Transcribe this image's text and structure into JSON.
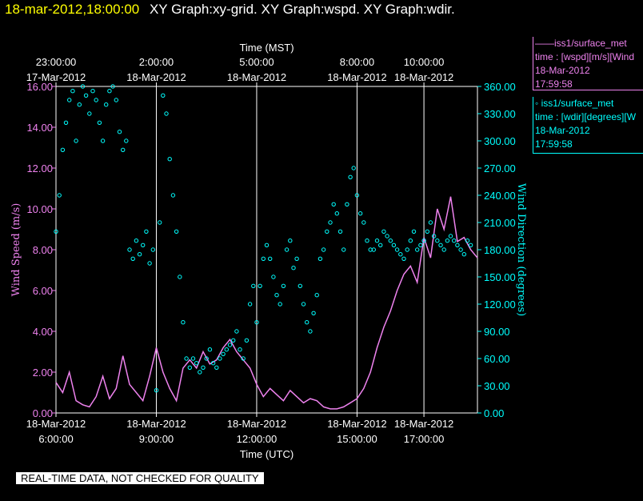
{
  "header": {
    "timestamp": "18-mar-2012,18:00:00",
    "title": "XY Graph:xy-grid.  XY Graph:wspd.  XY Graph:wdir."
  },
  "legend": {
    "wspd": {
      "line1": "iss1/surface_met",
      "line2": "time : [wspd][m/s][Wind",
      "line3": "18-Mar-2012",
      "line4": "17:59:58"
    },
    "wdir": {
      "line1": "iss1/surface_met",
      "line2": "time : [wdir][degrees][W",
      "line3": "18-Mar-2012",
      "line4": "17:59:58"
    }
  },
  "warning": "REAL-TIME DATA, NOT CHECKED FOR QUALITY",
  "colors": {
    "wspd": "#ee82ee",
    "wdir": "#00ffff",
    "header_timestamp": "#ffff00",
    "grid": "#ffffff"
  },
  "chart_data": {
    "type": "line",
    "x_top_label": "Time (MST)",
    "x_bottom_label": "Time (UTC)",
    "y_left_label": "Wind Speed (m/s)",
    "y_right_label": "Wind Direction (degrees)",
    "x_range_utc_hours": [
      6.0,
      18.6
    ],
    "y_left_range": [
      0,
      16
    ],
    "y_right_range": [
      0,
      360
    ],
    "y_left_ticks": [
      "0.00",
      "2.00",
      "4.00",
      "6.00",
      "8.00",
      "10.00",
      "12.00",
      "14.00",
      "16.00"
    ],
    "y_right_ticks": [
      "0.00",
      "30.00",
      "60.00",
      "90.00",
      "120.00",
      "150.00",
      "180.00",
      "210.00",
      "240.00",
      "270.00",
      "300.00",
      "330.00",
      "360.00"
    ],
    "bottom_ticks": [
      {
        "utc": 6.0,
        "date": "18-Mar-2012",
        "time": "6:00:00"
      },
      {
        "utc": 9.0,
        "date": "18-Mar-2012",
        "time": "9:00:00"
      },
      {
        "utc": 12.0,
        "date": "18-Mar-2012",
        "time": "12:00:00"
      },
      {
        "utc": 15.0,
        "date": "18-Mar-2012",
        "time": "15:00:00"
      },
      {
        "utc": 17.0,
        "date": "18-Mar-2012",
        "time": "17:00:00"
      }
    ],
    "top_ticks": [
      {
        "utc": 6.0,
        "date": "17-Mar-2012",
        "time": "23:00:00"
      },
      {
        "utc": 9.0,
        "date": "18-Mar-2012",
        "time": "2:00:00"
      },
      {
        "utc": 12.0,
        "date": "18-Mar-2012",
        "time": "5:00:00"
      },
      {
        "utc": 15.0,
        "date": "18-Mar-2012",
        "time": "8:00:00"
      },
      {
        "utc": 17.0,
        "date": "18-Mar-2012",
        "time": "10:00:00"
      }
    ],
    "grid": true,
    "series": [
      {
        "name": "iss1/surface_met time : [wspd][m/s][Wind",
        "style": "line",
        "x": [
          6.0,
          6.2,
          6.4,
          6.6,
          6.8,
          7.0,
          7.2,
          7.4,
          7.6,
          7.8,
          8.0,
          8.2,
          8.4,
          8.6,
          8.8,
          9.0,
          9.2,
          9.4,
          9.6,
          9.8,
          10.0,
          10.2,
          10.4,
          10.6,
          10.8,
          11.0,
          11.2,
          11.4,
          11.6,
          11.8,
          12.0,
          12.2,
          12.4,
          12.6,
          12.8,
          13.0,
          13.2,
          13.4,
          13.6,
          13.8,
          14.0,
          14.2,
          14.4,
          14.6,
          14.8,
          15.0,
          15.2,
          15.4,
          15.6,
          15.8,
          16.0,
          16.2,
          16.4,
          16.6,
          16.8,
          17.0,
          17.2,
          17.4,
          17.6,
          17.8,
          18.0,
          18.2,
          18.4,
          18.6
        ],
        "y": [
          1.5,
          1.0,
          2.0,
          0.6,
          0.4,
          0.3,
          0.8,
          1.8,
          0.7,
          1.2,
          2.8,
          1.4,
          1.0,
          0.6,
          1.8,
          3.2,
          2.0,
          1.2,
          0.6,
          2.2,
          2.6,
          2.2,
          3.0,
          2.4,
          2.6,
          3.2,
          3.6,
          3.0,
          2.6,
          2.2,
          1.4,
          0.8,
          1.2,
          0.9,
          0.6,
          1.1,
          0.8,
          0.5,
          0.7,
          0.6,
          0.3,
          0.2,
          0.2,
          0.3,
          0.5,
          0.7,
          1.2,
          2.0,
          3.2,
          4.2,
          5.0,
          6.0,
          6.8,
          7.2,
          6.4,
          8.6,
          7.6,
          10.0,
          9.0,
          10.6,
          8.4,
          8.6,
          8.0,
          7.6
        ]
      },
      {
        "name": "iss1/surface_met time : [wdir][degrees][W",
        "style": "markers",
        "x": [
          6.0,
          6.1,
          6.2,
          6.3,
          6.4,
          6.5,
          6.6,
          6.7,
          6.8,
          6.9,
          7.0,
          7.1,
          7.2,
          7.3,
          7.4,
          7.5,
          7.6,
          7.7,
          7.8,
          7.9,
          8.0,
          8.1,
          8.2,
          8.3,
          8.4,
          8.5,
          8.6,
          8.7,
          8.8,
          8.9,
          9.0,
          9.1,
          9.2,
          9.3,
          9.4,
          9.5,
          9.6,
          9.7,
          9.8,
          9.9,
          10.0,
          10.1,
          10.2,
          10.3,
          10.4,
          10.5,
          10.6,
          10.7,
          10.8,
          10.9,
          11.0,
          11.1,
          11.2,
          11.3,
          11.4,
          11.5,
          11.6,
          11.7,
          11.8,
          11.9,
          12.0,
          12.1,
          12.2,
          12.3,
          12.4,
          12.5,
          12.6,
          12.7,
          12.8,
          12.9,
          13.0,
          13.1,
          13.2,
          13.3,
          13.4,
          13.5,
          13.6,
          13.7,
          13.8,
          13.9,
          14.0,
          14.1,
          14.2,
          14.3,
          14.4,
          14.5,
          14.6,
          14.7,
          14.8,
          14.9,
          15.0,
          15.1,
          15.2,
          15.3,
          15.4,
          15.5,
          15.6,
          15.7,
          15.8,
          15.9,
          16.0,
          16.1,
          16.2,
          16.3,
          16.4,
          16.5,
          16.6,
          16.7,
          16.8,
          16.9,
          17.0,
          17.1,
          17.2,
          17.3,
          17.4,
          17.5,
          17.6,
          17.7,
          17.8,
          17.9,
          18.0,
          18.1,
          18.2,
          18.3,
          18.4
        ],
        "y": [
          200,
          240,
          290,
          320,
          345,
          355,
          300,
          340,
          360,
          350,
          330,
          355,
          345,
          320,
          300,
          340,
          355,
          360,
          345,
          310,
          290,
          300,
          180,
          170,
          190,
          175,
          185,
          200,
          165,
          180,
          25,
          210,
          350,
          330,
          280,
          240,
          200,
          150,
          100,
          60,
          50,
          60,
          55,
          45,
          50,
          60,
          70,
          55,
          50,
          60,
          65,
          70,
          75,
          80,
          90,
          70,
          60,
          80,
          120,
          140,
          100,
          140,
          170,
          185,
          170,
          150,
          130,
          120,
          140,
          180,
          190,
          160,
          170,
          140,
          120,
          100,
          90,
          110,
          130,
          170,
          180,
          200,
          210,
          230,
          220,
          200,
          180,
          230,
          260,
          270,
          240,
          220,
          210,
          190,
          180,
          180,
          190,
          185,
          200,
          195,
          190,
          185,
          180,
          175,
          170,
          180,
          190,
          200,
          180,
          185,
          190,
          200,
          210,
          195,
          190,
          185,
          180,
          190,
          195,
          190,
          185,
          180,
          175,
          190,
          185
        ]
      }
    ]
  }
}
